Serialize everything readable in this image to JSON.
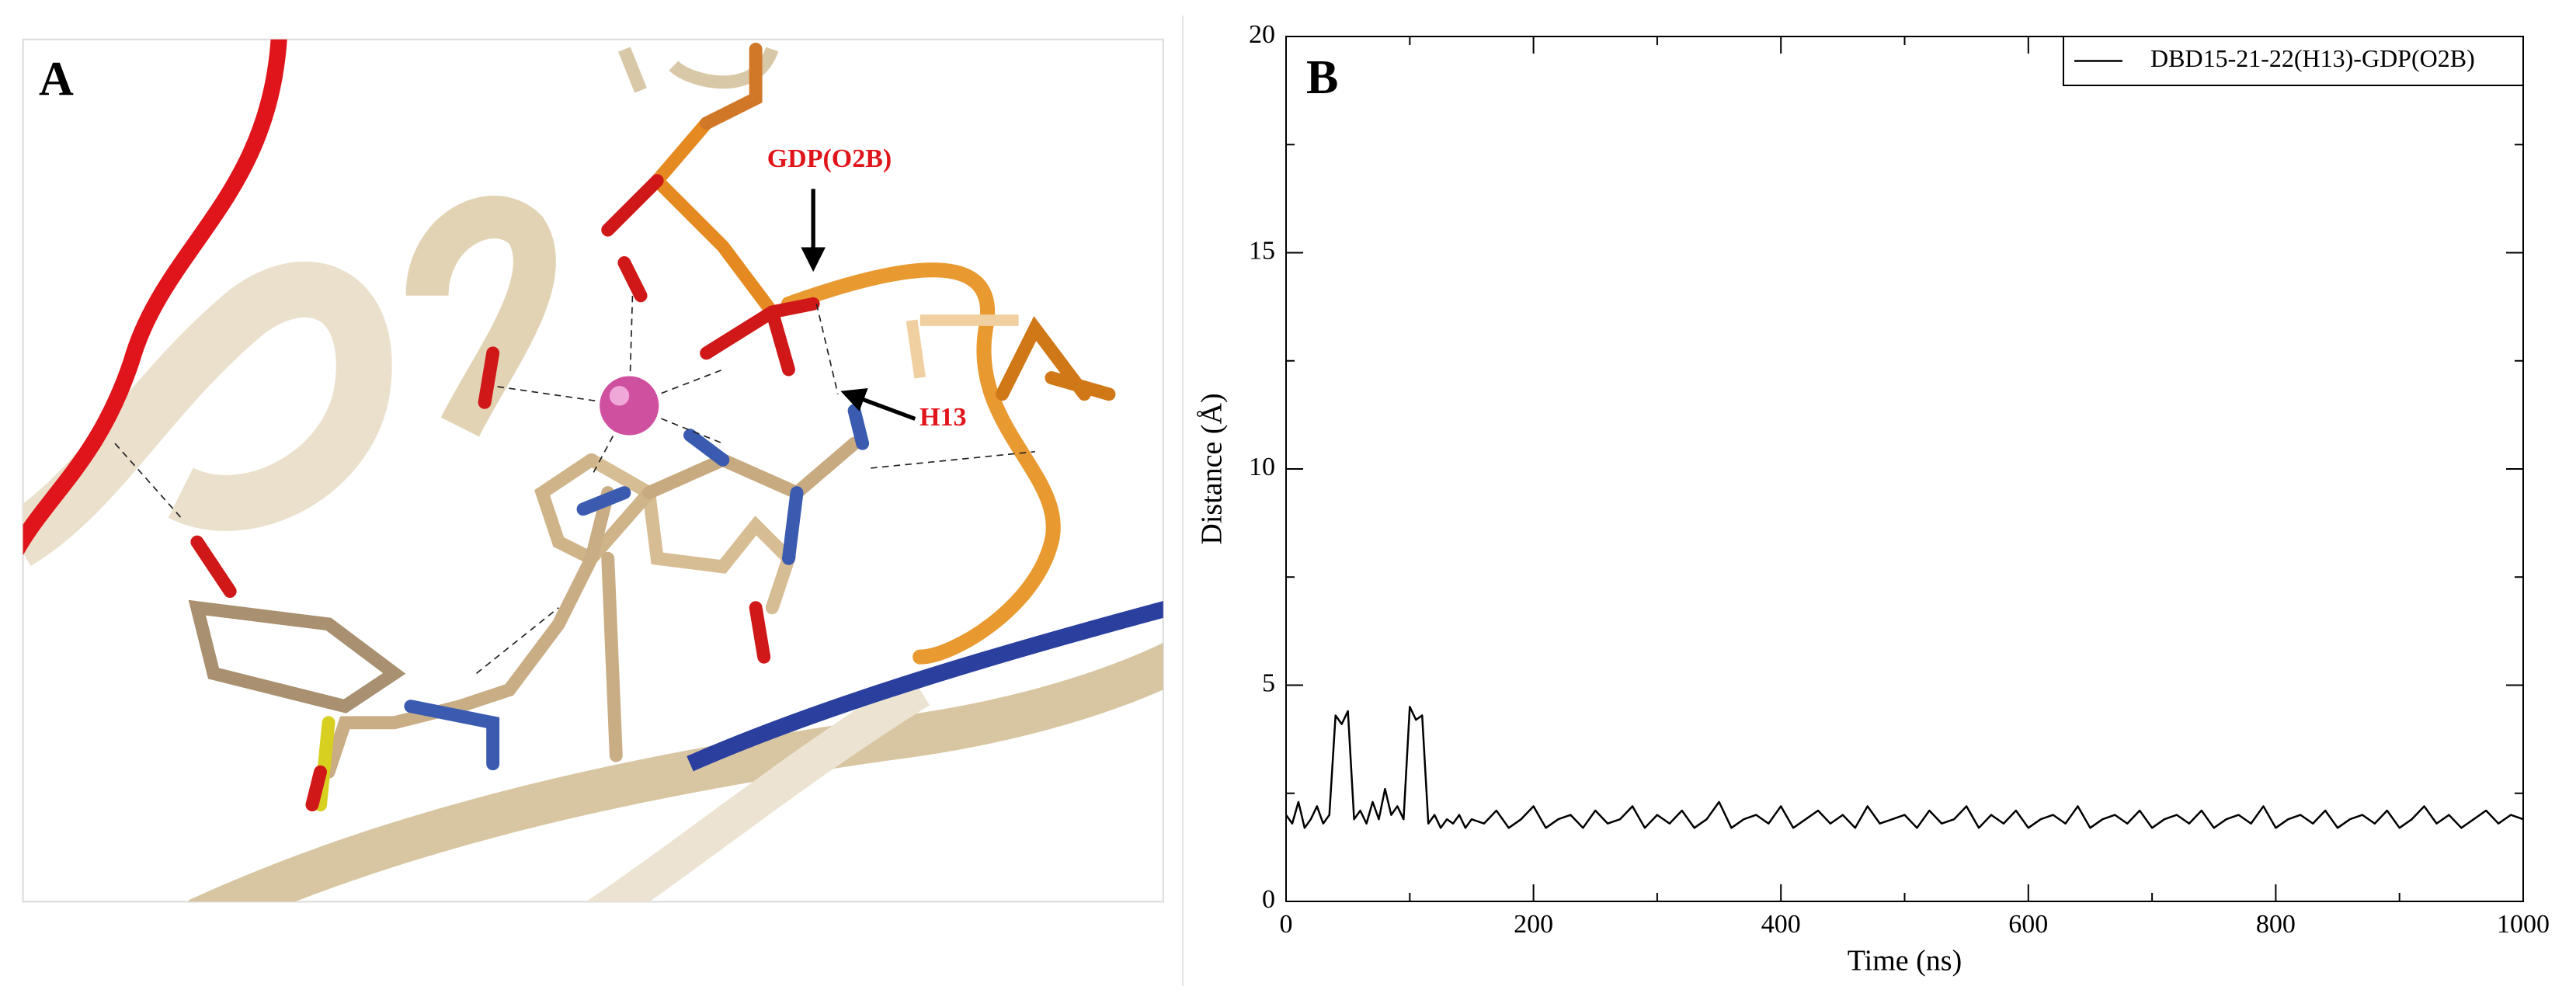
{
  "panel_a": {
    "label": "A",
    "annotations": [
      "GDP(O2B)",
      "H13"
    ]
  },
  "chart_data": {
    "type": "line",
    "panel_label": "B",
    "x_label": "Time (ns)",
    "y_label": "Distance (Å)",
    "xlim": [
      0,
      1000
    ],
    "ylim": [
      0,
      20
    ],
    "xticks": [
      0,
      200,
      400,
      600,
      800,
      1000
    ],
    "yticks": [
      0,
      5,
      10,
      15,
      20
    ],
    "xminorticks": [
      100,
      300,
      500,
      700,
      900
    ],
    "yminorticks": [
      2.5,
      7.5,
      12.5,
      17.5
    ],
    "legend": "top-right",
    "x": [
      0,
      5,
      10,
      15,
      20,
      25,
      30,
      35,
      40,
      45,
      50,
      55,
      60,
      65,
      70,
      75,
      80,
      85,
      90,
      95,
      100,
      105,
      110,
      115,
      120,
      125,
      130,
      135,
      140,
      145,
      150,
      160,
      170,
      180,
      190,
      200,
      210,
      220,
      230,
      240,
      250,
      260,
      270,
      280,
      290,
      300,
      310,
      320,
      330,
      340,
      350,
      360,
      370,
      380,
      390,
      400,
      410,
      420,
      430,
      440,
      450,
      460,
      470,
      480,
      490,
      500,
      510,
      520,
      530,
      540,
      550,
      560,
      570,
      580,
      590,
      600,
      610,
      620,
      630,
      640,
      650,
      660,
      670,
      680,
      690,
      700,
      710,
      720,
      730,
      740,
      750,
      760,
      770,
      780,
      790,
      800,
      810,
      820,
      830,
      840,
      850,
      860,
      870,
      880,
      890,
      900,
      910,
      920,
      930,
      940,
      950,
      960,
      970,
      980,
      990,
      1000
    ],
    "series": [
      {
        "name": "DBD15-21-22(H13)-GDP(O2B)",
        "color": "#000000",
        "values": [
          2.0,
          1.8,
          2.3,
          1.7,
          1.9,
          2.2,
          1.8,
          2.0,
          4.3,
          4.1,
          4.4,
          1.9,
          2.1,
          1.8,
          2.3,
          1.9,
          2.6,
          2.0,
          2.2,
          1.9,
          4.5,
          4.2,
          4.3,
          1.8,
          2.0,
          1.7,
          1.9,
          1.8,
          2.0,
          1.7,
          1.9,
          1.8,
          2.1,
          1.7,
          1.9,
          2.2,
          1.7,
          1.9,
          2.0,
          1.7,
          2.1,
          1.8,
          1.9,
          2.2,
          1.7,
          2.0,
          1.8,
          2.1,
          1.7,
          1.9,
          2.3,
          1.7,
          1.9,
          2.0,
          1.8,
          2.2,
          1.7,
          1.9,
          2.1,
          1.8,
          2.0,
          1.7,
          2.2,
          1.8,
          1.9,
          2.0,
          1.7,
          2.1,
          1.8,
          1.9,
          2.2,
          1.7,
          2.0,
          1.8,
          2.1,
          1.7,
          1.9,
          2.0,
          1.8,
          2.2,
          1.7,
          1.9,
          2.0,
          1.8,
          2.1,
          1.7,
          1.9,
          2.0,
          1.8,
          2.1,
          1.7,
          1.9,
          2.0,
          1.8,
          2.2,
          1.7,
          1.9,
          2.0,
          1.8,
          2.1,
          1.7,
          1.9,
          2.0,
          1.8,
          2.1,
          1.7,
          1.9,
          2.2,
          1.8,
          2.0,
          1.7,
          1.9,
          2.1,
          1.8,
          2.0,
          1.9
        ]
      }
    ]
  }
}
